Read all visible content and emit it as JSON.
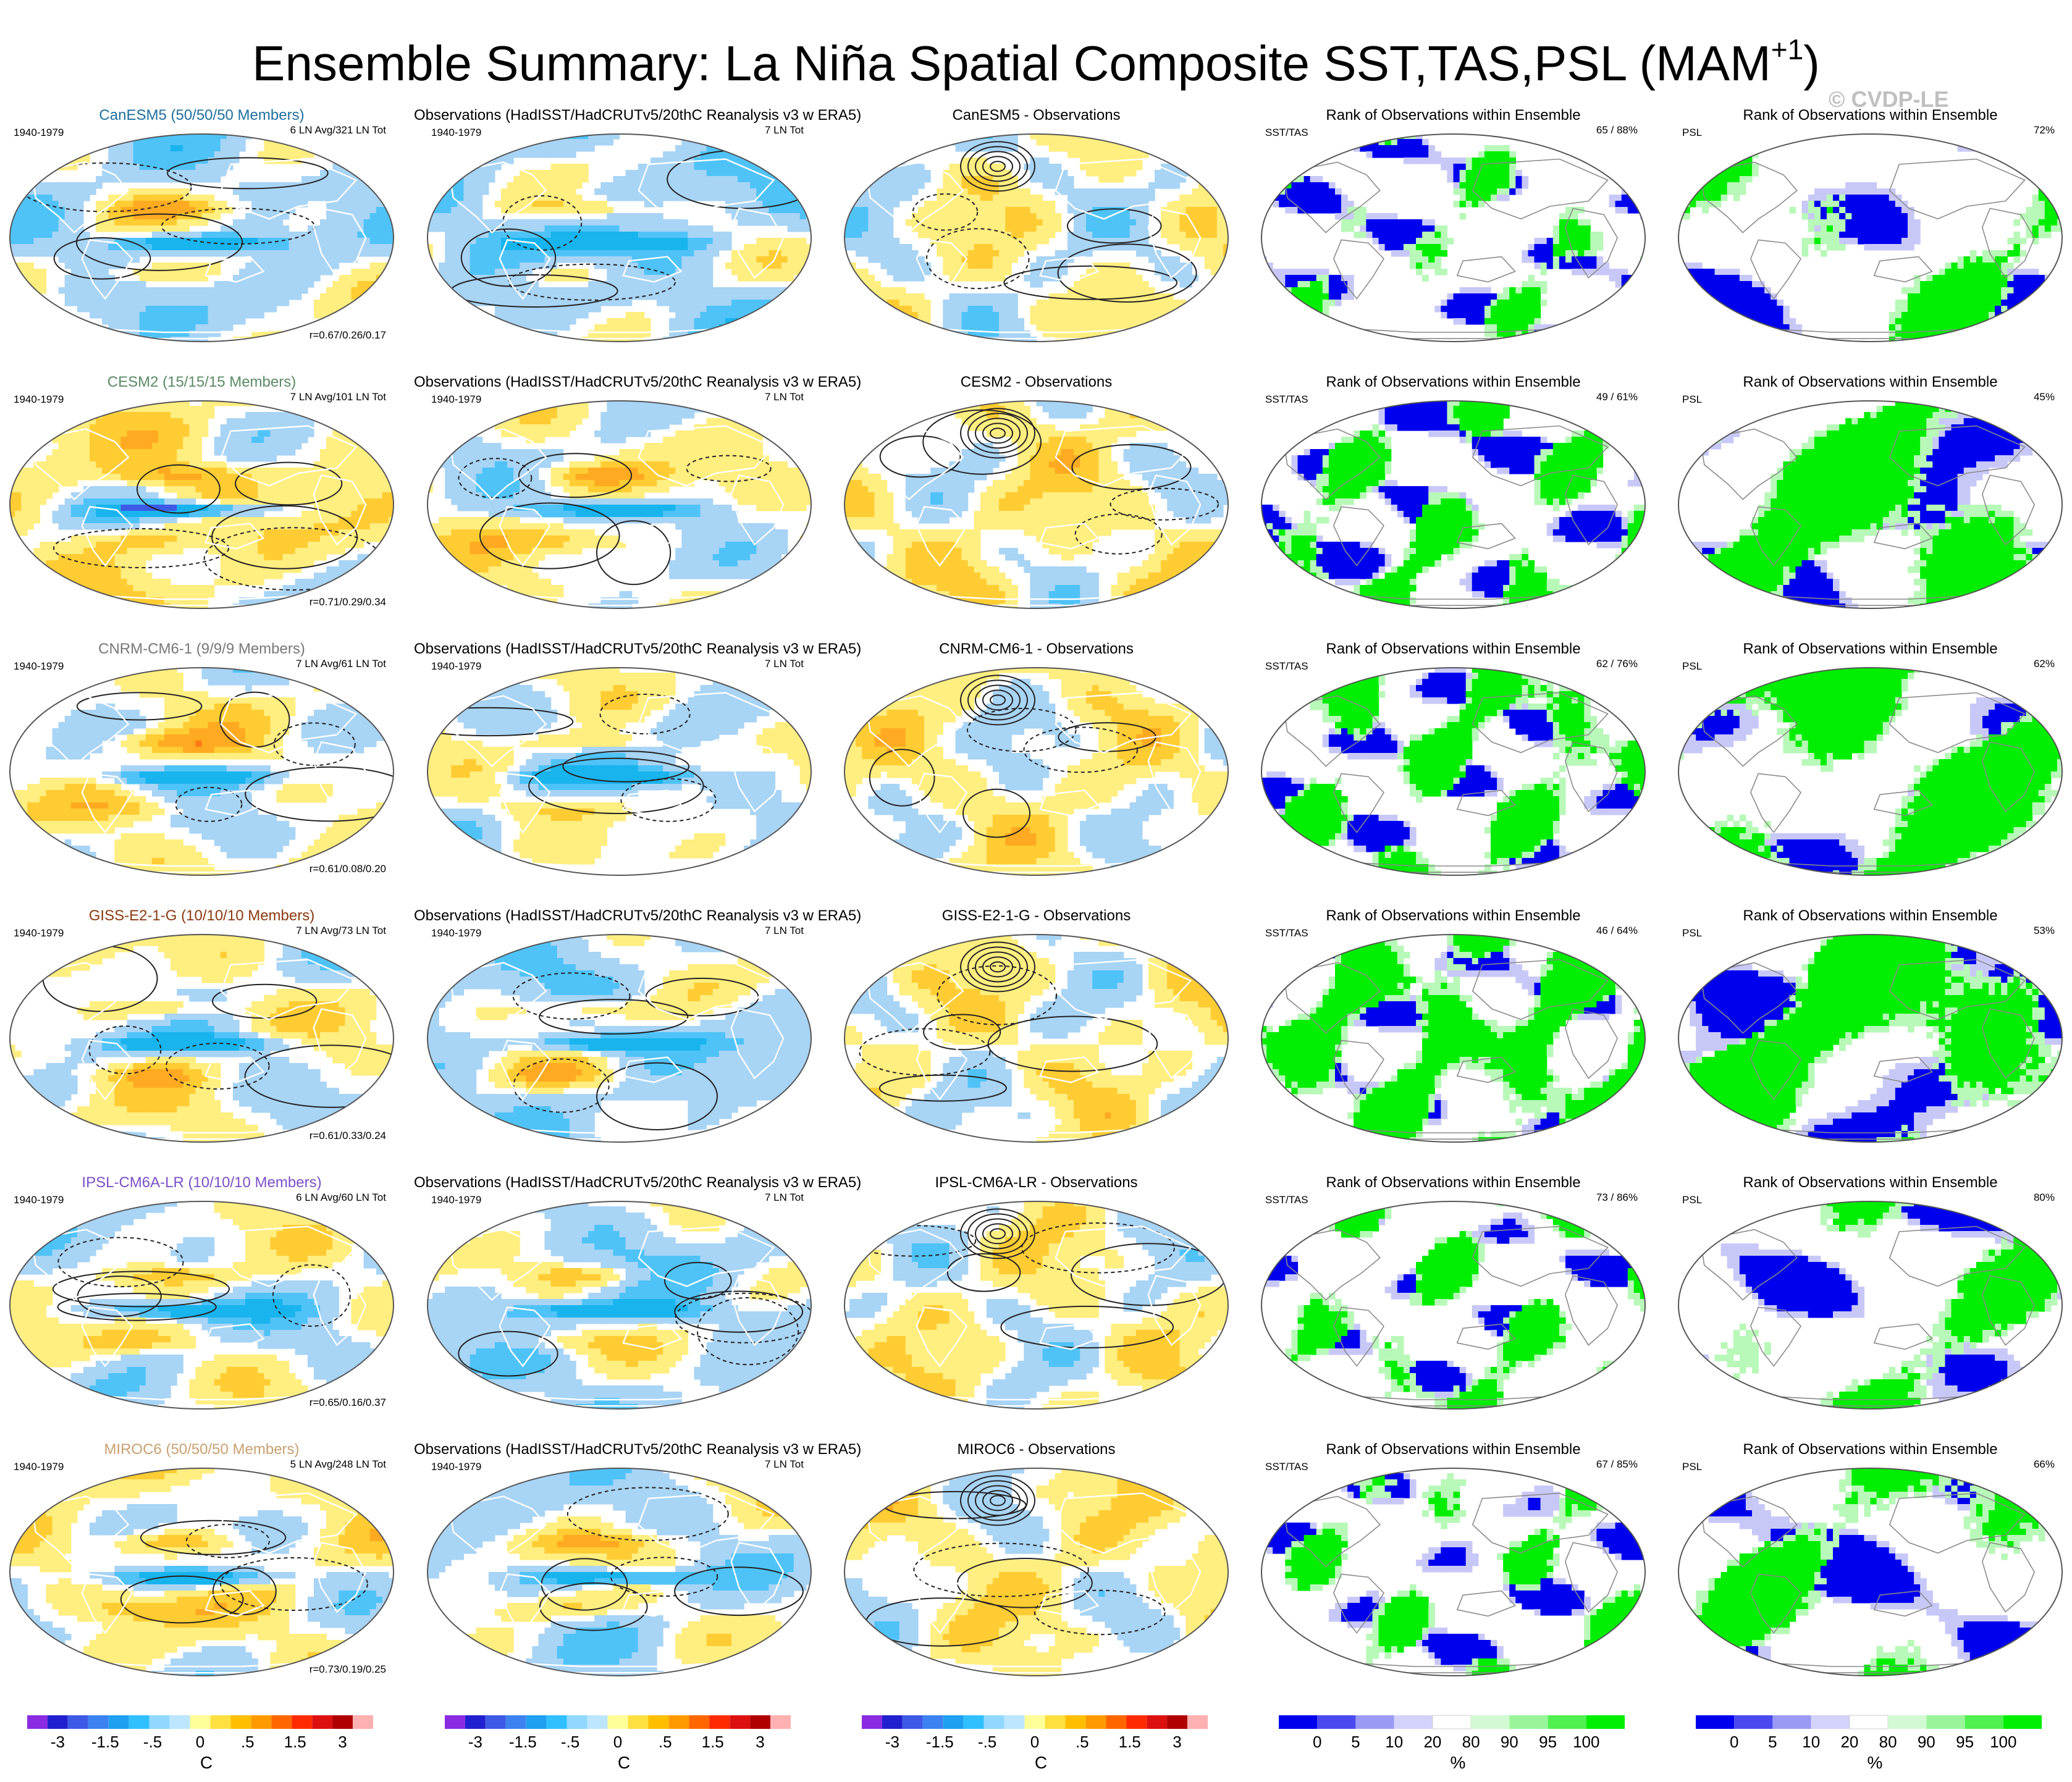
{
  "title": {
    "main": "Ensemble Summary: La Niña Spatial Composite SST,TAS,PSL (MAM",
    "sup": "+1",
    "close": ")"
  },
  "watermark": "© CVDP-LE",
  "colors": {
    "green": "#00ee00",
    "blue": "#0000ee",
    "ocean": "#a8d4f5",
    "land_warm": "#ffee80",
    "orange": "#ffaa20",
    "cyan": "#18b4ee"
  },
  "rows": [
    {
      "model": "CanESM5 (50/50/50 Members)",
      "model_color": "#1f6f9f",
      "period": "1940-1979",
      "ens_info": "6 LN Avg/321 LN Tot",
      "corr": "r=0.67/0.26/0.17",
      "obs_title": "Observations (HadISST/HadCRUTv5/20thC Reanalysis v3 w ERA5)",
      "obs_period": "1940-1979",
      "obs_info": "7 LN Tot",
      "diff_title": "CanESM5 - Observations",
      "rank_title": "Rank of Observations within Ensemble",
      "rank_left": "SST/TAS",
      "rank_right": "65 /  88%",
      "psl_title": "Rank of Observations within Ensemble",
      "psl_left": "PSL",
      "psl_right": "72%",
      "warmth": 0.2,
      "g1": 0.25,
      "b1": 0.35,
      "g2": 0.3,
      "b2": 0.3
    },
    {
      "model": "CESM2 (15/15/15 Members)",
      "model_color": "#5b8a66",
      "period": "1940-1979",
      "ens_info": "7 LN Avg/101 LN Tot",
      "corr": "r=0.71/0.29/0.34",
      "obs_title": "Observations (HadISST/HadCRUTv5/20thC Reanalysis v3 w ERA5)",
      "obs_period": "1940-1979",
      "obs_info": "7 LN Tot",
      "diff_title": "CESM2 - Observations",
      "rank_title": "Rank of Observations within Ensemble",
      "rank_left": "SST/TAS",
      "rank_right": "49 /  61%",
      "psl_title": "Rank of Observations within Ensemble",
      "psl_left": "PSL",
      "psl_right": "45%",
      "warmth": 0.55,
      "g1": 0.45,
      "b1": 0.45,
      "g2": 0.75,
      "b2": 0.5
    },
    {
      "model": "CNRM-CM6-1 (9/9/9 Members)",
      "model_color": "#777777",
      "period": "1940-1979",
      "ens_info": "7 LN Avg/61 LN Tot",
      "corr": "r=0.61/0.08/0.20",
      "obs_title": "Observations (HadISST/HadCRUTv5/20thC Reanalysis v3 w ERA5)",
      "obs_period": "1940-1979",
      "obs_info": "7 LN Tot",
      "diff_title": "CNRM-CM6-1 - Observations",
      "rank_title": "Rank of Observations within Ensemble",
      "rank_left": "SST/TAS",
      "rank_right": "62 /  76%",
      "psl_title": "Rank of Observations within Ensemble",
      "psl_left": "PSL",
      "psl_right": "62%",
      "warmth": 0.4,
      "g1": 0.55,
      "b1": 0.35,
      "g2": 0.7,
      "b2": 0.3
    },
    {
      "model": "GISS-E2-1-G (10/10/10 Members)",
      "model_color": "#8b3a12",
      "period": "1940-1979",
      "ens_info": "7 LN Avg/73 LN Tot",
      "corr": "r=0.61/0.33/0.24",
      "obs_title": "Observations (HadISST/HadCRUTv5/20thC Reanalysis v3 w ERA5)",
      "obs_period": "1940-1979",
      "obs_info": "7 LN Tot",
      "diff_title": "GISS-E2-1-G - Observations",
      "rank_title": "Rank of Observations within Ensemble",
      "rank_left": "SST/TAS",
      "rank_right": "46 /  64%",
      "psl_title": "Rank of Observations within Ensemble",
      "psl_left": "PSL",
      "psl_right": "53%",
      "warmth": 0.35,
      "g1": 0.7,
      "b1": 0.4,
      "g2": 0.75,
      "b2": 0.5
    },
    {
      "model": "IPSL-CM6A-LR (10/10/10 Members)",
      "model_color": "#7b4fc9",
      "period": "1940-1979",
      "ens_info": "6 LN Avg/60 LN Tot",
      "corr": "r=0.65/0.16/0.37",
      "obs_title": "Observations (HadISST/HadCRUTv5/20thC Reanalysis v3 w ERA5)",
      "obs_period": "1940-1979",
      "obs_info": "7 LN Tot",
      "diff_title": "IPSL-CM6A-LR - Observations",
      "rank_title": "Rank of Observations within Ensemble",
      "rank_left": "SST/TAS",
      "rank_right": "73 /  86%",
      "psl_title": "Rank of Observations within Ensemble",
      "psl_left": "PSL",
      "psl_right": "80%",
      "warmth": 0.3,
      "g1": 0.4,
      "b1": 0.3,
      "g2": 0.3,
      "b2": 0.3
    },
    {
      "model": "MIROC6 (50/50/50 Members)",
      "model_color": "#c8a070",
      "period": "1940-1979",
      "ens_info": "5 LN Avg/248 LN Tot",
      "corr": "r=0.73/0.19/0.25",
      "obs_title": "Observations (HadISST/HadCRUTv5/20thC Reanalysis v3 w ERA5)",
      "obs_period": "1940-1979",
      "obs_info": "7 LN Tot",
      "diff_title": "MIROC6 - Observations",
      "rank_title": "Rank of Observations within Ensemble",
      "rank_left": "SST/TAS",
      "rank_right": "67 /  85%",
      "psl_title": "Rank of Observations within Ensemble",
      "psl_left": "PSL",
      "psl_right": "66%",
      "warmth": 0.45,
      "g1": 0.3,
      "b1": 0.3,
      "g2": 0.4,
      "b2": 0.4
    }
  ],
  "temp_colorbar": {
    "colors": [
      "#8a2be2",
      "#2020d0",
      "#3c5ae6",
      "#3c82f0",
      "#1ea0f0",
      "#30c0ff",
      "#90d8ff",
      "#bce6ff",
      "#ffff99",
      "#ffe040",
      "#ffbf00",
      "#ff9a00",
      "#ff6600",
      "#ff2a00",
      "#dd1010",
      "#b00000",
      "#ffb0b0"
    ],
    "labels": [
      "-3",
      "-1.5",
      "-.5",
      "0",
      ".5",
      "1.5",
      "3"
    ],
    "unit": "C"
  },
  "rank_colorbar": {
    "colors": [
      "#0000ee",
      "#4a4af0",
      "#9a9af5",
      "#d2d2fa",
      "#ffffff",
      "#d2fad2",
      "#9af59a",
      "#50f050",
      "#00ee00"
    ],
    "labels": [
      "0",
      "5",
      "10",
      "20",
      "80",
      "90",
      "95",
      "100"
    ],
    "unit": "%"
  }
}
